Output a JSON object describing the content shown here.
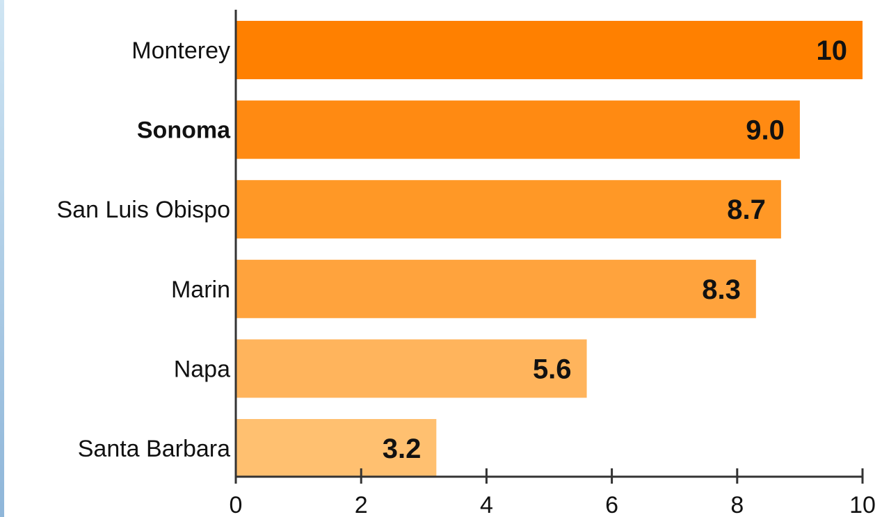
{
  "chart_data": {
    "type": "bar",
    "orientation": "horizontal",
    "title": "",
    "xlabel": "",
    "ylabel": "",
    "categories": [
      "Monterey",
      "Sonoma",
      "San Luis Obispo",
      "Marin",
      "Napa",
      "Santa Barbara"
    ],
    "bold_categories": [
      "Sonoma"
    ],
    "values": [
      10,
      9.0,
      8.7,
      8.3,
      5.6,
      3.2
    ],
    "value_labels": [
      "10",
      "9.0",
      "8.7",
      "8.3",
      "5.6",
      "3.2"
    ],
    "bar_colors": [
      "#ff8000",
      "#ff8a12",
      "#ff9826",
      "#ffa33d",
      "#ffb45c",
      "#ffc070"
    ],
    "xlim": [
      0,
      10
    ],
    "xticks": [
      0,
      2,
      4,
      6,
      8,
      10
    ],
    "xtick_labels": [
      "0",
      "2",
      "4",
      "6",
      "8",
      "10"
    ],
    "grid": false,
    "legend": "none",
    "axis_color": "#333333"
  }
}
